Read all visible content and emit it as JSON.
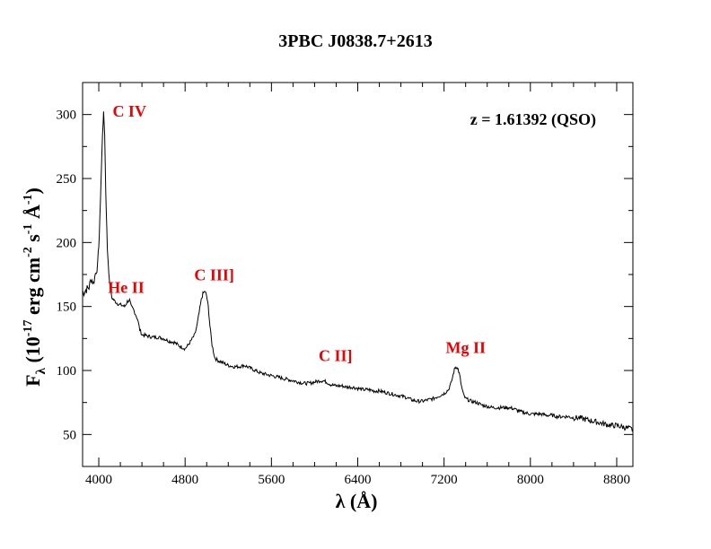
{
  "chart_data": {
    "type": "line",
    "title": "3PBC J0838.7+2613",
    "xlabel": "λ (Å)",
    "ylabel_parts": {
      "F": "F",
      "lambda": "λ",
      "open": " (10",
      "exp17": "-17",
      "erg": " erg cm",
      "exp2": "-2",
      "s": " s",
      "exp1": "-1",
      "angstrom": " Å",
      "expm1": "-1",
      "close": ")"
    },
    "xlim": [
      3850,
      8950
    ],
    "ylim": [
      25,
      325
    ],
    "x_ticks": [
      4000,
      4800,
      5600,
      6400,
      7200,
      8000,
      8800
    ],
    "y_ticks": [
      50,
      100,
      150,
      200,
      250,
      300
    ],
    "grid": false,
    "annotation": "z = 1.61392 (QSO)",
    "line_color": "#000000",
    "label_color": "#ee0000",
    "emission_lines": [
      {
        "label": "C IV",
        "x": 4045,
        "y": 301
      },
      {
        "label": "He II",
        "x": 4285,
        "y": 155
      },
      {
        "label": "C III]",
        "x": 4985,
        "y": 162
      },
      {
        "label": "C II]",
        "x": 6080,
        "y": 92
      },
      {
        "label": "Mg II",
        "x": 7315,
        "y": 103
      }
    ],
    "series": [
      {
        "points": [
          [
            3850,
            160
          ],
          [
            3880,
            163
          ],
          [
            3910,
            165
          ],
          [
            3930,
            172
          ],
          [
            3950,
            168
          ],
          [
            3970,
            176
          ],
          [
            3990,
            182
          ],
          [
            4005,
            205
          ],
          [
            4020,
            245
          ],
          [
            4035,
            285
          ],
          [
            4045,
            301
          ],
          [
            4055,
            285
          ],
          [
            4065,
            240
          ],
          [
            4080,
            195
          ],
          [
            4100,
            168
          ],
          [
            4120,
            157
          ],
          [
            4150,
            154
          ],
          [
            4180,
            152
          ],
          [
            4210,
            151
          ],
          [
            4240,
            150
          ],
          [
            4265,
            154
          ],
          [
            4285,
            155
          ],
          [
            4300,
            150
          ],
          [
            4320,
            148
          ],
          [
            4340,
            144
          ],
          [
            4360,
            140
          ],
          [
            4380,
            132
          ],
          [
            4400,
            128
          ],
          [
            4450,
            127
          ],
          [
            4500,
            126
          ],
          [
            4550,
            126
          ],
          [
            4600,
            125
          ],
          [
            4650,
            123
          ],
          [
            4700,
            122
          ],
          [
            4750,
            119
          ],
          [
            4800,
            117
          ],
          [
            4830,
            120
          ],
          [
            4860,
            124
          ],
          [
            4890,
            128
          ],
          [
            4910,
            135
          ],
          [
            4930,
            145
          ],
          [
            4950,
            155
          ],
          [
            4965,
            160
          ],
          [
            4985,
            162
          ],
          [
            5000,
            158
          ],
          [
            5015,
            150
          ],
          [
            5030,
            135
          ],
          [
            5050,
            120
          ],
          [
            5075,
            110
          ],
          [
            5100,
            108
          ],
          [
            5150,
            106
          ],
          [
            5200,
            104
          ],
          [
            5250,
            103
          ],
          [
            5300,
            103
          ],
          [
            5350,
            104
          ],
          [
            5400,
            102
          ],
          [
            5450,
            100
          ],
          [
            5500,
            98
          ],
          [
            5550,
            97
          ],
          [
            5600,
            96
          ],
          [
            5650,
            95
          ],
          [
            5700,
            94
          ],
          [
            5750,
            93
          ],
          [
            5800,
            92
          ],
          [
            5850,
            91
          ],
          [
            5900,
            90
          ],
          [
            5950,
            90
          ],
          [
            6000,
            91
          ],
          [
            6050,
            92
          ],
          [
            6080,
            92
          ],
          [
            6110,
            91
          ],
          [
            6150,
            89
          ],
          [
            6200,
            88
          ],
          [
            6250,
            88
          ],
          [
            6300,
            87
          ],
          [
            6350,
            87
          ],
          [
            6400,
            86
          ],
          [
            6450,
            85
          ],
          [
            6500,
            85
          ],
          [
            6550,
            84
          ],
          [
            6600,
            84
          ],
          [
            6650,
            83
          ],
          [
            6700,
            82
          ],
          [
            6750,
            81
          ],
          [
            6800,
            80
          ],
          [
            6850,
            79
          ],
          [
            6900,
            77
          ],
          [
            6950,
            76
          ],
          [
            7000,
            76
          ],
          [
            7050,
            77
          ],
          [
            7100,
            78
          ],
          [
            7150,
            80
          ],
          [
            7200,
            82
          ],
          [
            7240,
            85
          ],
          [
            7265,
            90
          ],
          [
            7285,
            97
          ],
          [
            7300,
            102
          ],
          [
            7315,
            103
          ],
          [
            7330,
            101
          ],
          [
            7345,
            96
          ],
          [
            7360,
            88
          ],
          [
            7380,
            81
          ],
          [
            7400,
            78
          ],
          [
            7450,
            76
          ],
          [
            7500,
            75
          ],
          [
            7550,
            73
          ],
          [
            7600,
            72
          ],
          [
            7650,
            71
          ],
          [
            7700,
            71
          ],
          [
            7750,
            71
          ],
          [
            7800,
            71
          ],
          [
            7850,
            70
          ],
          [
            7900,
            68
          ],
          [
            7950,
            67
          ],
          [
            8000,
            66
          ],
          [
            8050,
            66
          ],
          [
            8100,
            66
          ],
          [
            8150,
            65
          ],
          [
            8200,
            65
          ],
          [
            8250,
            64
          ],
          [
            8300,
            64
          ],
          [
            8350,
            64
          ],
          [
            8400,
            63
          ],
          [
            8450,
            63
          ],
          [
            8500,
            62
          ],
          [
            8550,
            61
          ],
          [
            8600,
            60
          ],
          [
            8650,
            59
          ],
          [
            8700,
            58
          ],
          [
            8750,
            57
          ],
          [
            8800,
            57
          ],
          [
            8850,
            56
          ],
          [
            8900,
            55
          ],
          [
            8950,
            54
          ]
        ]
      }
    ]
  }
}
